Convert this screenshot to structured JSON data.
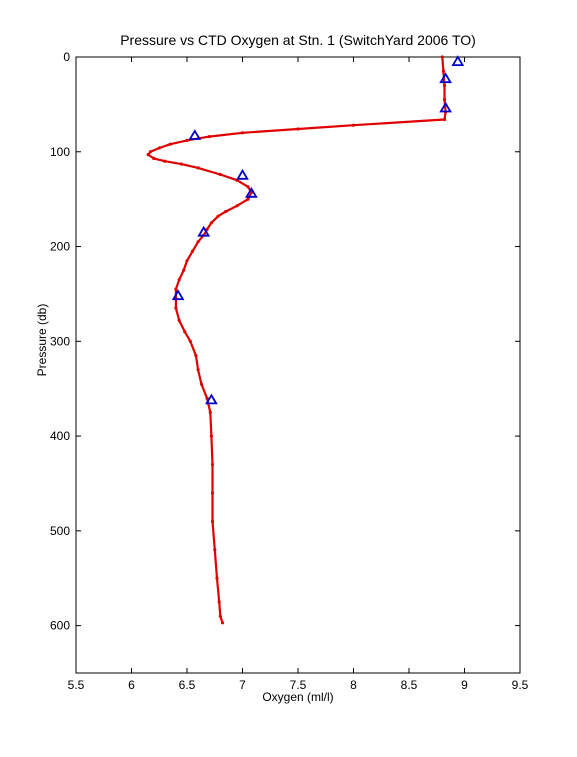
{
  "chart_data": {
    "type": "line",
    "title": "Pressure vs CTD Oxygen at Stn. 1 (SwitchYard 2006 TO)",
    "xlabel": "Oxygen (ml/l)",
    "ylabel": "Pressure (db)",
    "xlim": [
      5.5,
      9.5
    ],
    "ylim": [
      0,
      650
    ],
    "y_reversed": true,
    "grid": false,
    "x_ticks": [
      5.5,
      6,
      6.5,
      7,
      7.5,
      8,
      8.5,
      9,
      9.5
    ],
    "y_ticks": [
      0,
      100,
      200,
      300,
      400,
      500,
      600
    ],
    "series": [
      {
        "style": "line-with-dots",
        "color": "#e00000",
        "points": [
          [
            8.8,
            0
          ],
          [
            8.81,
            15
          ],
          [
            8.82,
            30
          ],
          [
            8.82,
            45
          ],
          [
            8.83,
            58
          ],
          [
            8.82,
            66
          ],
          [
            8.0,
            72
          ],
          [
            7.5,
            76
          ],
          [
            7.0,
            80
          ],
          [
            6.7,
            84
          ],
          [
            6.5,
            88
          ],
          [
            6.35,
            92
          ],
          [
            6.25,
            96
          ],
          [
            6.17,
            100
          ],
          [
            6.15,
            103
          ],
          [
            6.2,
            107
          ],
          [
            6.3,
            110
          ],
          [
            6.45,
            113
          ],
          [
            6.6,
            117
          ],
          [
            6.8,
            124
          ],
          [
            6.95,
            130
          ],
          [
            7.05,
            137
          ],
          [
            7.08,
            143
          ],
          [
            7.05,
            150
          ],
          [
            6.95,
            157
          ],
          [
            6.85,
            163
          ],
          [
            6.78,
            168
          ],
          [
            6.72,
            175
          ],
          [
            6.68,
            182
          ],
          [
            6.65,
            188
          ],
          [
            6.6,
            195
          ],
          [
            6.55,
            205
          ],
          [
            6.5,
            215
          ],
          [
            6.47,
            225
          ],
          [
            6.43,
            235
          ],
          [
            6.4,
            245
          ],
          [
            6.4,
            255
          ],
          [
            6.4,
            265
          ],
          [
            6.43,
            278
          ],
          [
            6.48,
            290
          ],
          [
            6.53,
            300
          ],
          [
            6.58,
            315
          ],
          [
            6.6,
            330
          ],
          [
            6.63,
            345
          ],
          [
            6.68,
            360
          ],
          [
            6.71,
            375
          ],
          [
            6.72,
            400
          ],
          [
            6.73,
            430
          ],
          [
            6.73,
            460
          ],
          [
            6.73,
            490
          ],
          [
            6.75,
            520
          ],
          [
            6.77,
            550
          ],
          [
            6.79,
            575
          ],
          [
            6.8,
            590
          ],
          [
            6.82,
            597
          ]
        ]
      },
      {
        "style": "triangle-markers",
        "color": "#0000cc",
        "points": [
          [
            8.94,
            5
          ],
          [
            8.83,
            23
          ],
          [
            8.83,
            54
          ],
          [
            6.57,
            83
          ],
          [
            7.0,
            125
          ],
          [
            7.08,
            144
          ],
          [
            6.65,
            185
          ],
          [
            6.42,
            252
          ],
          [
            6.72,
            362
          ]
        ]
      }
    ]
  }
}
